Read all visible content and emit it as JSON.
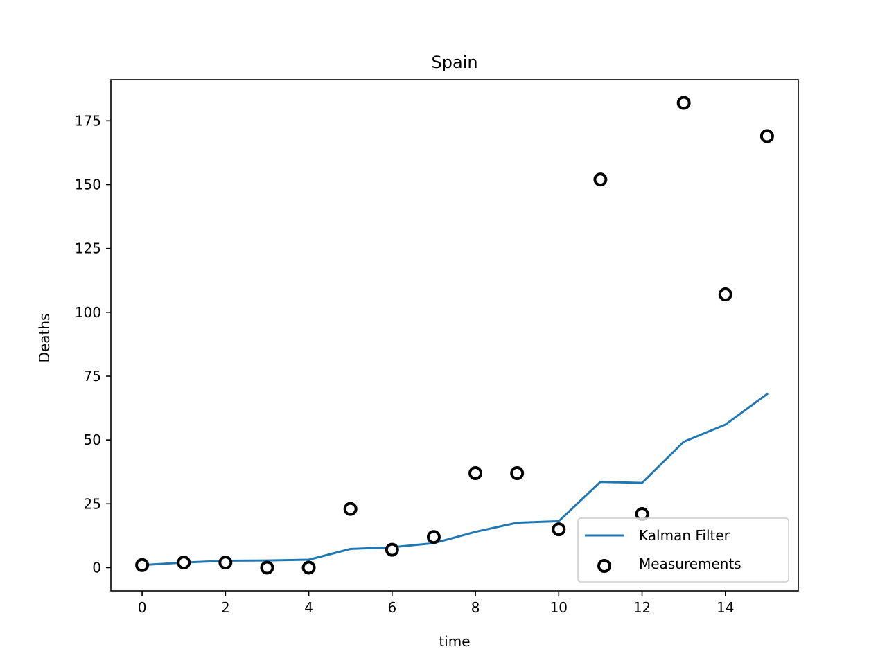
{
  "chart_data": {
    "type": "line",
    "title": "Spain",
    "xlabel": "time",
    "ylabel": "Deaths",
    "xlim": [
      -0.75,
      15.75
    ],
    "ylim": [
      -9.1,
      191.1
    ],
    "xticks": [
      0,
      2,
      4,
      6,
      8,
      10,
      12,
      14
    ],
    "yticks": [
      0,
      25,
      50,
      75,
      100,
      125,
      150,
      175
    ],
    "grid": false,
    "legend_position": "lower-right",
    "series": [
      {
        "name": "Kalman Filter",
        "kind": "line",
        "color": "#1f77b4",
        "x": [
          0,
          1,
          2,
          3,
          4,
          5,
          6,
          7,
          8,
          9,
          10,
          11,
          12,
          13,
          14,
          15
        ],
        "y": [
          1,
          2,
          2.7,
          2.8,
          3.1,
          7.3,
          8,
          9.6,
          14,
          17.6,
          18.2,
          33.6,
          33.2,
          49.3,
          56,
          68
        ]
      },
      {
        "name": "Measurements",
        "kind": "scatter",
        "marker": "hollow-circle",
        "color": "#000000",
        "x": [
          0,
          1,
          2,
          3,
          4,
          5,
          6,
          7,
          8,
          9,
          10,
          11,
          12,
          13,
          14,
          15
        ],
        "y": [
          1,
          2,
          2,
          0,
          0,
          23,
          7,
          12,
          37,
          37,
          15,
          152,
          21,
          182,
          107,
          169
        ]
      }
    ]
  }
}
